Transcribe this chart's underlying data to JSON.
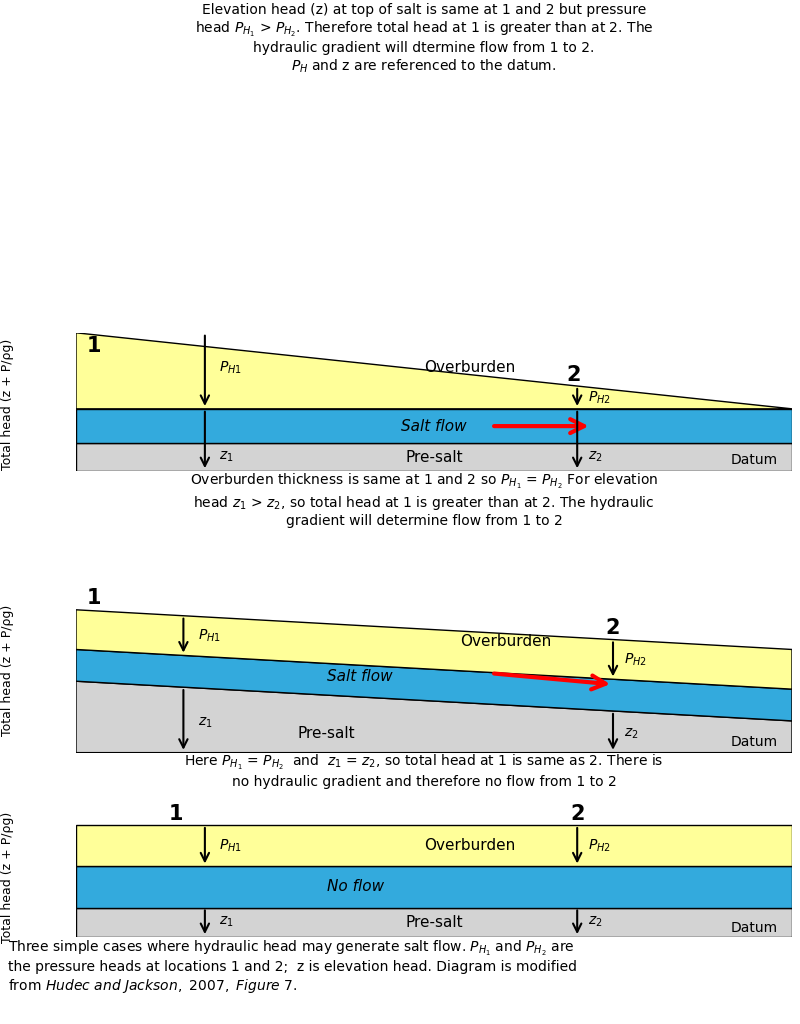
{
  "bg_color": "#ffffff",
  "yellow": "#FFFF99",
  "blue": "#33AADD",
  "gray": "#D3D3D3",
  "black": "#000000",
  "red": "#CC0000",
  "diagram1": {
    "title": "Elevation head (z) at top of salt is same at 1 and 2 but pressure\nhead $P_{H_1}$ > $P_{H_2}$. Therefore total head at 1 is greater than at 2. The\nhydraulic gradient will dtermine flow from 1 to 2.\n$P_H$ and z are referenced to the datum.",
    "overburden_label": "Overburden",
    "salt_label": "Salt flow",
    "presalt_label": "Pre-salt",
    "datum_label": "Datum",
    "y_label": "Total head (z + P/ρg)"
  },
  "diagram2": {
    "title": "Overburden thickness is same at 1 and 2 so $P_{H_1}$ = $P_{H_2}$ For elevation\nhead $z_1$ > $z_2$, so total head at 1 is greater than at 2. The hydraulic\ngradient will determine flow from 1 to 2",
    "overburden_label": "Overburden",
    "salt_label": "Salt flow",
    "presalt_label": "Pre-salt",
    "datum_label": "Datum",
    "y_label": "Total head (z + P/ρg)"
  },
  "diagram3": {
    "title": "Here $P_{H_1}$ = $P_{H_2}$  and  $z_1$ = $z_2$, so total head at 1 is same as 2. There is\nno hydraulic gradient and therefore no flow from 1 to 2",
    "overburden_label": "Overburden",
    "salt_label": "No flow",
    "presalt_label": "Pre-salt",
    "datum_label": "Datum",
    "y_label": "Total head (z + P/ρg)"
  },
  "caption": "Three simple cases where hydraulic head may generate salt flow. $P_{H_1}$ and $P_{H_2}$ are\nthe pressure heads at locations 1 and 2;  z is elevation head. Diagram is modified\nfrom $\\it{Hudec\\ and\\ Jackson,\\ 2007,\\ Figure\\ 7.}$"
}
